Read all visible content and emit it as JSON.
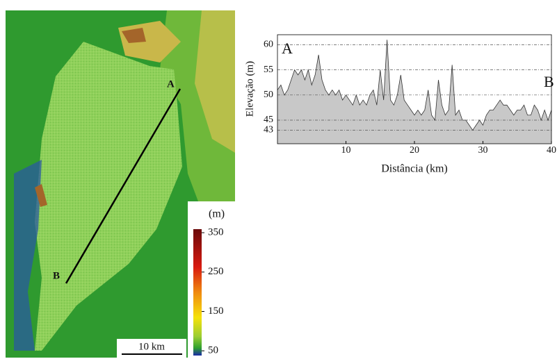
{
  "chart_data": {
    "type": "area",
    "y_label": "Elevação (m)",
    "x_label": "Distância (km)",
    "start_label": "A",
    "end_label": "B",
    "color": "#c8c8c8",
    "line_color": "#333333",
    "x": [
      0,
      0.5,
      1,
      1.5,
      2,
      2.5,
      3,
      3.5,
      4,
      4.5,
      5,
      5.5,
      6,
      6.5,
      7,
      7.5,
      8,
      8.5,
      9,
      9.5,
      10,
      10.5,
      11,
      11.5,
      12,
      12.5,
      13,
      13.5,
      14,
      14.5,
      15,
      15.5,
      16,
      16.5,
      17,
      17.5,
      18,
      18.5,
      19,
      19.5,
      20,
      20.5,
      21,
      21.5,
      22,
      22.5,
      23,
      23.5,
      24,
      24.5,
      25,
      25.5,
      26,
      26.5,
      27,
      27.5,
      28,
      28.5,
      29,
      29.5,
      30,
      30.5,
      31,
      31.5,
      32,
      32.5,
      33,
      33.5,
      34,
      34.5,
      35,
      35.5,
      36,
      36.5,
      37,
      37.5,
      38,
      38.5,
      39,
      39.5,
      40
    ],
    "values": [
      51,
      52,
      50,
      51,
      53,
      55,
      54,
      55,
      53,
      55,
      52,
      54,
      58,
      53,
      51,
      50,
      51,
      50,
      51,
      49,
      50,
      49,
      48,
      50,
      48,
      49,
      48,
      50,
      51,
      48,
      55,
      49,
      61,
      49,
      48,
      50,
      54,
      49,
      48,
      47,
      46,
      47,
      46,
      47,
      51,
      46,
      45,
      53,
      48,
      46,
      47,
      56,
      46,
      47,
      45,
      45,
      44,
      43,
      44,
      45,
      44,
      46,
      47,
      47,
      48,
      49,
      48,
      48,
      47,
      46,
      47,
      47,
      48,
      46,
      46,
      48,
      47,
      45,
      47,
      45,
      47
    ],
    "xlim": [
      0,
      40
    ],
    "ylim": [
      40.3,
      62
    ],
    "xticks": [
      10,
      20,
      30,
      40
    ],
    "yticks": [
      43,
      45,
      50,
      55,
      60
    ],
    "grid": true
  },
  "map": {
    "point_a": "A",
    "point_b": "B",
    "scale_bar": "10 km",
    "colorbar": {
      "unit": "(m)",
      "lim": [
        38,
        359
      ],
      "ticks": [
        50,
        150,
        250,
        350
      ]
    }
  }
}
